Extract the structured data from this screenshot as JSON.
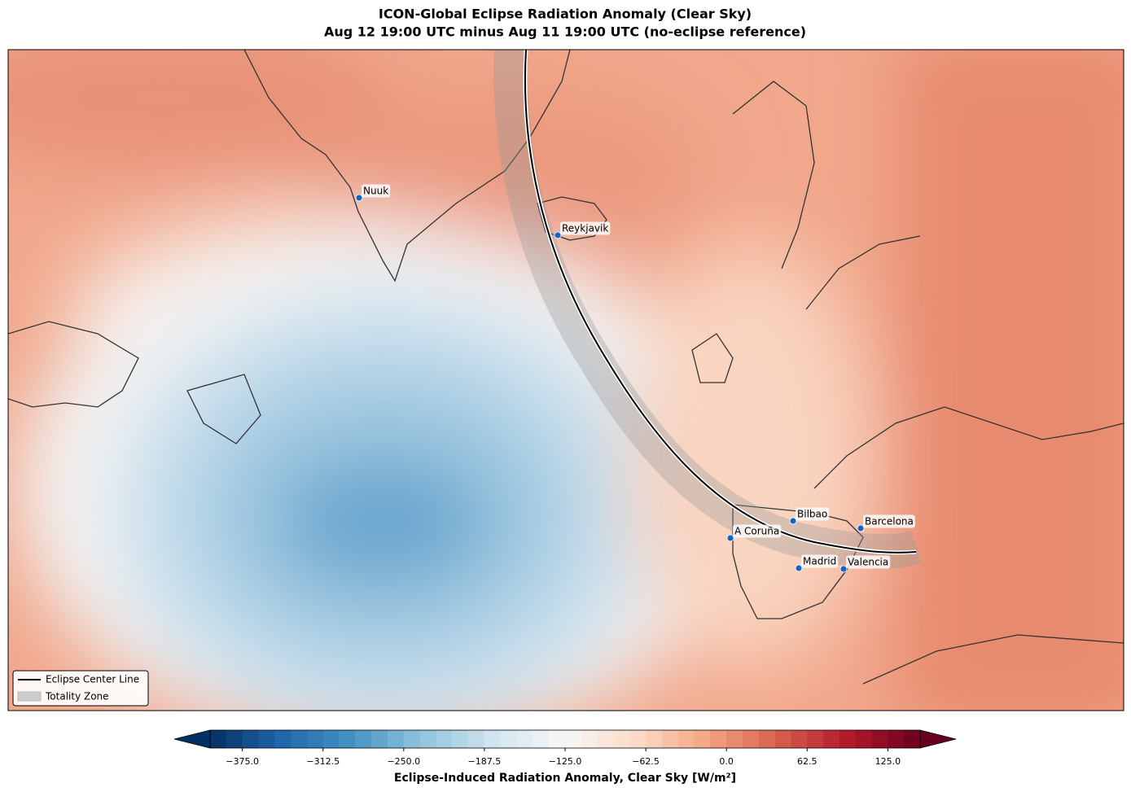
{
  "title": "ICON-Global Eclipse Radiation Anomaly (Clear Sky)",
  "subtitle": "Aug 12 19:00 UTC minus Aug 11 19:00 UTC (no-eclipse reference)",
  "cities": [
    "Nuuk",
    "Reykjavik",
    "Bilbao",
    "Barcelona",
    "A Coruña",
    "Madrid",
    "Valencia"
  ],
  "legend": [
    "Eclipse Center Line",
    "Totality Zone"
  ],
  "colorbar": {
    "label": "Eclipse-Induced Radiation Anomaly, Clear Sky [W/m²]",
    "colormap": "RdBu_r",
    "lim": [
      -400,
      150
    ],
    "ticks": [
      {
        "value": -375,
        "label": "−375.0"
      },
      {
        "value": -312.5,
        "label": "−312.5"
      },
      {
        "value": -250,
        "label": "−250.0"
      },
      {
        "value": -187.5,
        "label": "−187.5"
      },
      {
        "value": -125,
        "label": "−125.0"
      },
      {
        "value": -62.5,
        "label": "−62.5"
      },
      {
        "value": 0,
        "label": "0.0"
      },
      {
        "value": 62.5,
        "label": "62.5"
      },
      {
        "value": 125,
        "label": "125.0"
      }
    ]
  }
}
